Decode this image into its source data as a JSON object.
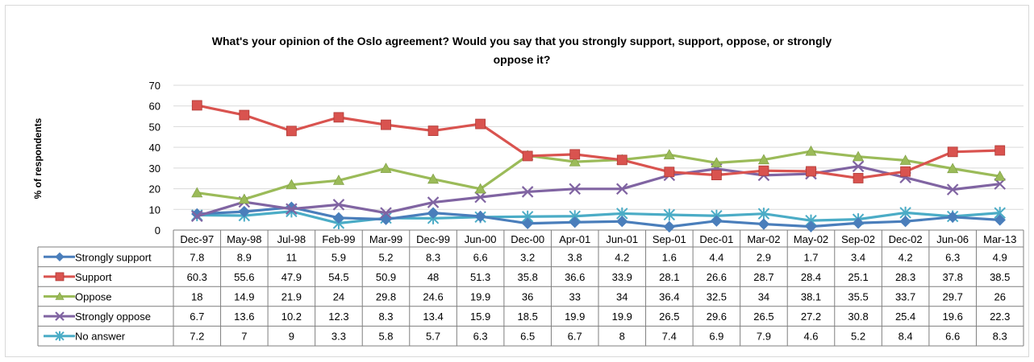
{
  "chart_data": {
    "type": "line",
    "title_line1": "What's your opinion of the Oslo agreement? Would you say that you strongly support, support, oppose, or strongly",
    "title_line2": "oppose it?",
    "ylabel": "% of respondents",
    "ylim": [
      0,
      70
    ],
    "yticks": [
      0,
      10,
      20,
      30,
      40,
      50,
      60,
      70
    ],
    "grid": true,
    "legend_placement": "data-table-left",
    "categories": [
      "Dec-97",
      "May-98",
      "Jul-98",
      "Feb-99",
      "Mar-99",
      "Dec-99",
      "Jun-00",
      "Dec-00",
      "Apr-01",
      "Jun-01",
      "Sep-01",
      "Dec-01",
      "Mar-02",
      "May-02",
      "Sep-02",
      "Dec-02",
      "Jun-06",
      "Mar-13"
    ],
    "series": [
      {
        "name": "Strongly support",
        "color": "#4a7ebb",
        "marker": "diamond",
        "values": [
          7.8,
          8.9,
          11,
          5.9,
          5.2,
          8.3,
          6.6,
          3.2,
          3.8,
          4.2,
          1.6,
          4.4,
          2.9,
          1.7,
          3.4,
          4.2,
          6.3,
          4.9
        ],
        "labels": [
          "7.8",
          "8.9",
          "11",
          "5.9",
          "5.2",
          "8.3",
          "6.6",
          "3.2",
          "3.8",
          "4.2",
          "1.6",
          "4.4",
          "2.9",
          "1.7",
          "3.4",
          "4.2",
          "6.3",
          "4.9"
        ]
      },
      {
        "name": "Support",
        "color": "#d9534f",
        "marker": "square",
        "values": [
          60.3,
          55.6,
          47.9,
          54.5,
          50.9,
          48,
          51.3,
          35.8,
          36.6,
          33.9,
          28.1,
          26.6,
          28.7,
          28.4,
          25.1,
          28.3,
          37.8,
          38.5
        ],
        "labels": [
          "60.3",
          "55.6",
          "47.9",
          "54.5",
          "50.9",
          "48",
          "51.3",
          "35.8",
          "36.6",
          "33.9",
          "28.1",
          "26.6",
          "28.7",
          "28.4",
          "25.1",
          "28.3",
          "37.8",
          "38.5"
        ]
      },
      {
        "name": "Oppose",
        "color": "#9bbb59",
        "marker": "triangle",
        "values": [
          18,
          14.9,
          21.9,
          24,
          29.8,
          24.6,
          19.9,
          36,
          33,
          34,
          36.4,
          32.5,
          34,
          38.1,
          35.5,
          33.7,
          29.7,
          26
        ],
        "labels": [
          "18",
          "14.9",
          "21.9",
          "24",
          "29.8",
          "24.6",
          "19.9",
          "36",
          "33",
          "34",
          "36.4",
          "32.5",
          "34",
          "38.1",
          "35.5",
          "33.7",
          "29.7",
          "26"
        ]
      },
      {
        "name": "Strongly oppose",
        "color": "#8064a2",
        "marker": "x",
        "values": [
          6.7,
          13.6,
          10.2,
          12.3,
          8.3,
          13.4,
          15.9,
          18.5,
          19.9,
          19.9,
          26.5,
          29.6,
          26.5,
          27.2,
          30.8,
          25.4,
          19.6,
          22.3
        ],
        "labels": [
          "6.7",
          "13.6",
          "10.2",
          "12.3",
          "8.3",
          "13.4",
          "15.9",
          "18.5",
          "19.9",
          "19.9",
          "26.5",
          "29.6",
          "26.5",
          "27.2",
          "30.8",
          "25.4",
          "19.6",
          "22.3"
        ]
      },
      {
        "name": "No answer",
        "color": "#4bacc6",
        "marker": "star",
        "values": [
          7.2,
          7,
          9,
          3.3,
          5.8,
          5.7,
          6.3,
          6.5,
          6.7,
          8,
          7.4,
          6.9,
          7.9,
          4.6,
          5.2,
          8.4,
          6.6,
          8.3
        ],
        "labels": [
          "7.2",
          "7",
          "9",
          "3.3",
          "5.8",
          "5.7",
          "6.3",
          "6.5",
          "6.7",
          "8",
          "7.4",
          "6.9",
          "7.9",
          "4.6",
          "5.2",
          "8.4",
          "6.6",
          "8.3"
        ]
      }
    ]
  }
}
